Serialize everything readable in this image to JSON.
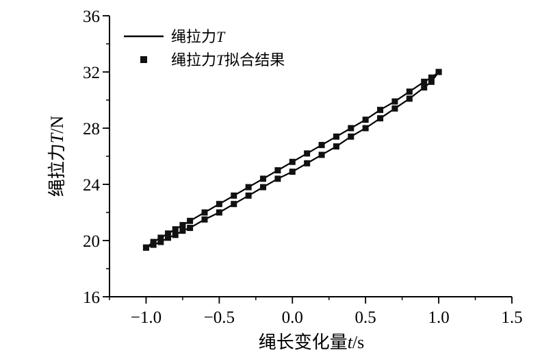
{
  "chart_data": {
    "type": "line",
    "title": "",
    "xlabel": {
      "prefix": "绳长变化量",
      "variable": "t",
      "unit": "/s"
    },
    "ylabel": {
      "prefix": "绳拉力",
      "variable": "T",
      "unit": "/N"
    },
    "xlim": [
      -1.25,
      1.5
    ],
    "ylim": [
      16,
      36
    ],
    "xticks": [
      -1.0,
      -0.5,
      0.0,
      0.5,
      1.0,
      1.5
    ],
    "xtick_labels": [
      "−1.0",
      "−0.5",
      "0.0",
      "0.5",
      "1.0",
      "1.5"
    ],
    "yticks": [
      16,
      20,
      24,
      28,
      32,
      36
    ],
    "ytick_labels": [
      "16",
      "20",
      "24",
      "28",
      "32",
      "36"
    ],
    "x_minor_step": 0.25,
    "y_minor_step": 2,
    "grid": false,
    "legend_position": "top-left",
    "legend": [
      {
        "prefix": "绳拉力",
        "variable": "T",
        "suffix": "",
        "marker": "line"
      },
      {
        "prefix": "绳拉力",
        "variable": "T",
        "suffix": "拟合结果",
        "marker": "square"
      }
    ],
    "series": [
      {
        "style": "line",
        "branch": "upper",
        "x": [
          -1.0,
          -0.95,
          -0.9,
          -0.85,
          -0.8,
          -0.75,
          -0.7,
          -0.6,
          -0.5,
          -0.4,
          -0.3,
          -0.2,
          -0.1,
          0.0,
          0.1,
          0.2,
          0.3,
          0.4,
          0.5,
          0.6,
          0.7,
          0.8,
          0.9,
          0.95,
          1.0
        ],
        "y": [
          19.5,
          19.9,
          20.2,
          20.5,
          20.8,
          21.1,
          21.4,
          22.0,
          22.6,
          23.2,
          23.8,
          24.4,
          25.0,
          25.6,
          26.2,
          26.8,
          27.4,
          28.0,
          28.6,
          29.3,
          29.9,
          30.6,
          31.3,
          31.6,
          32.0
        ]
      },
      {
        "style": "line",
        "branch": "lower",
        "x": [
          -1.0,
          -0.95,
          -0.9,
          -0.85,
          -0.8,
          -0.75,
          -0.7,
          -0.6,
          -0.5,
          -0.4,
          -0.3,
          -0.2,
          -0.1,
          0.0,
          0.1,
          0.2,
          0.3,
          0.4,
          0.5,
          0.6,
          0.7,
          0.8,
          0.9,
          0.95,
          1.0
        ],
        "y": [
          19.5,
          19.7,
          19.9,
          20.2,
          20.4,
          20.7,
          20.9,
          21.5,
          22.0,
          22.6,
          23.2,
          23.8,
          24.4,
          24.9,
          25.5,
          26.1,
          26.7,
          27.4,
          28.0,
          28.7,
          29.4,
          30.1,
          30.9,
          31.3,
          32.0
        ]
      },
      {
        "style": "square",
        "branch": "upper",
        "x": [
          -1.0,
          -0.95,
          -0.9,
          -0.85,
          -0.8,
          -0.75,
          -0.7,
          -0.6,
          -0.5,
          -0.4,
          -0.3,
          -0.2,
          -0.1,
          0.0,
          0.1,
          0.2,
          0.3,
          0.4,
          0.5,
          0.6,
          0.7,
          0.8,
          0.9,
          0.95,
          1.0
        ],
        "y": [
          19.5,
          19.9,
          20.2,
          20.5,
          20.8,
          21.1,
          21.4,
          22.0,
          22.6,
          23.2,
          23.8,
          24.4,
          25.0,
          25.6,
          26.2,
          26.8,
          27.4,
          28.0,
          28.6,
          29.3,
          29.9,
          30.6,
          31.3,
          31.6,
          32.0
        ]
      },
      {
        "style": "square",
        "branch": "lower",
        "x": [
          -1.0,
          -0.95,
          -0.9,
          -0.85,
          -0.8,
          -0.75,
          -0.7,
          -0.6,
          -0.5,
          -0.4,
          -0.3,
          -0.2,
          -0.1,
          0.0,
          0.1,
          0.2,
          0.3,
          0.4,
          0.5,
          0.6,
          0.7,
          0.8,
          0.9,
          0.95,
          1.0
        ],
        "y": [
          19.5,
          19.7,
          19.9,
          20.2,
          20.4,
          20.7,
          20.9,
          21.5,
          22.0,
          22.6,
          23.2,
          23.8,
          24.4,
          24.9,
          25.5,
          26.1,
          26.7,
          27.4,
          28.0,
          28.7,
          29.4,
          30.1,
          30.9,
          31.3,
          32.0
        ]
      }
    ],
    "colors": {
      "line": "#000000",
      "marker": "#111111",
      "axis": "#000000"
    }
  }
}
